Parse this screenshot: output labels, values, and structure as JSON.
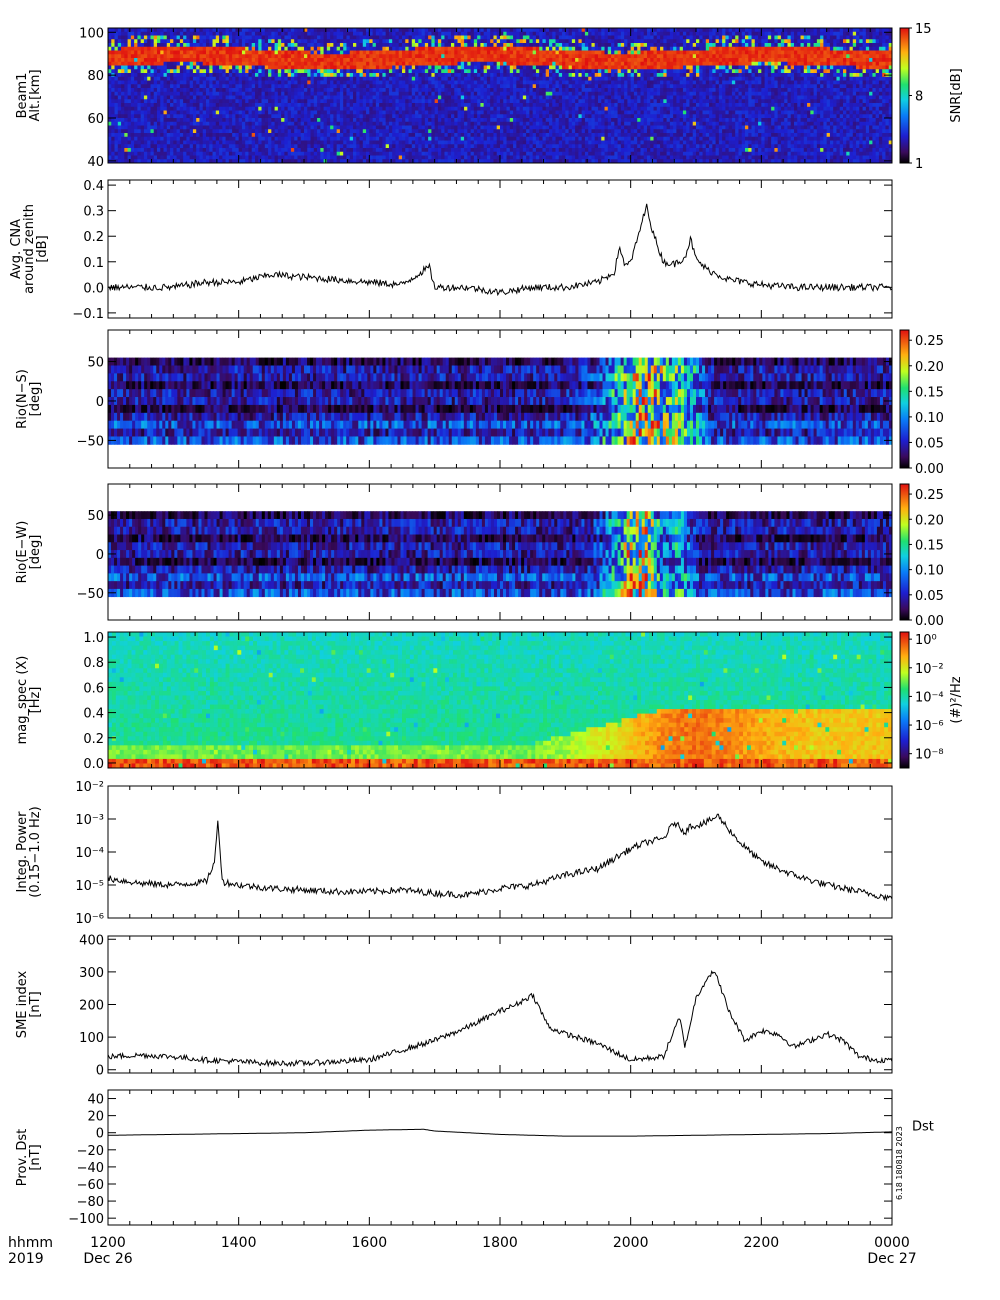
{
  "bottom_axis": {
    "row1_label": "hhmm",
    "row2_label": "2019",
    "ticks": [
      {
        "value": 1200,
        "label": "1200",
        "sub": "Dec 26"
      },
      {
        "value": 1400,
        "label": "1400",
        "sub": ""
      },
      {
        "value": 1600,
        "label": "1600",
        "sub": ""
      },
      {
        "value": 1800,
        "label": "1800",
        "sub": ""
      },
      {
        "value": 2000,
        "label": "2000",
        "sub": ""
      },
      {
        "value": 2200,
        "label": "2200",
        "sub": ""
      },
      {
        "value": 2400,
        "label": "0000",
        "sub": "Dec 27"
      }
    ]
  },
  "credit": "6.18 180818 2023",
  "chart_data": [
    {
      "type": "heatmap",
      "ylabel": [
        "Beam1",
        "Alt.[km]"
      ],
      "yticks": [
        {
          "v": 40,
          "l": "40"
        },
        {
          "v": 60,
          "l": "60"
        },
        {
          "v": 80,
          "l": "80"
        },
        {
          "v": 100,
          "l": "100"
        }
      ],
      "ylim": [
        39,
        102
      ],
      "colorbar": {
        "title": "SNR[dB]",
        "range": [
          1,
          15
        ],
        "ticks": [
          {
            "v": 1,
            "l": "1"
          },
          {
            "v": 8,
            "l": "8"
          },
          {
            "v": 15,
            "l": "15"
          }
        ]
      },
      "description_bands": {
        "echo_layer_altitude_km": [
          84,
          92
        ],
        "peak_snr_db": 15,
        "background_snr_db": 2
      }
    },
    {
      "type": "line",
      "ylabel": [
        "Avg. CNA",
        "around zenith",
        "[dB]"
      ],
      "ylim": [
        -0.12,
        0.42
      ],
      "yticks": [
        {
          "v": -0.1,
          "l": "−0.1"
        },
        {
          "v": 0,
          "l": "0.0"
        },
        {
          "v": 0.1,
          "l": "0.1"
        },
        {
          "v": 0.2,
          "l": "0.2"
        },
        {
          "v": 0.3,
          "l": "0.3"
        },
        {
          "v": 0.4,
          "l": "0.4"
        }
      ],
      "x": [
        1200,
        1300,
        1330,
        1400,
        1430,
        1500,
        1530,
        1600,
        1630,
        1655,
        1700,
        1730,
        1800,
        1830,
        1900,
        1930,
        1945,
        1950,
        1955,
        2000,
        2005,
        2010,
        2015,
        2020,
        2030,
        2040,
        2050,
        2055,
        2100,
        2110,
        2120,
        2130,
        2200,
        2230,
        2300,
        2330,
        2400
      ],
      "values": [
        0.0,
        0.0,
        0.02,
        0.02,
        0.05,
        0.04,
        0.03,
        0.02,
        0.01,
        0.08,
        0.0,
        0.0,
        -0.02,
        0.0,
        0.0,
        0.02,
        0.06,
        0.16,
        0.08,
        0.1,
        0.17,
        0.25,
        0.32,
        0.22,
        0.1,
        0.09,
        0.12,
        0.19,
        0.11,
        0.07,
        0.05,
        0.03,
        0.01,
        0.0,
        0.0,
        0.0,
        0.0
      ]
    },
    {
      "type": "heatmap",
      "ylabel": [
        "Rio(N−S)",
        "[deg]"
      ],
      "ylim": [
        -85,
        90
      ],
      "yticks": [
        {
          "v": -50,
          "l": "−50"
        },
        {
          "v": 0,
          "l": "0"
        },
        {
          "v": 50,
          "l": "50"
        }
      ],
      "colorbar": {
        "title": "",
        "range": [
          0,
          0.27
        ],
        "ticks": [
          {
            "v": 0,
            "l": "0.00"
          },
          {
            "v": 0.05,
            "l": "0.05"
          },
          {
            "v": 0.1,
            "l": "0.10"
          },
          {
            "v": 0.15,
            "l": "0.15"
          },
          {
            "v": 0.2,
            "l": "0.20"
          },
          {
            "v": 0.25,
            "l": "0.25"
          }
        ]
      },
      "extent_deg": [
        -55,
        55
      ]
    },
    {
      "type": "heatmap",
      "ylabel": [
        "Rio(E−W)",
        "[deg]"
      ],
      "ylim": [
        -85,
        90
      ],
      "yticks": [
        {
          "v": -50,
          "l": "−50"
        },
        {
          "v": 0,
          "l": "0"
        },
        {
          "v": 50,
          "l": "50"
        }
      ],
      "colorbar": {
        "title": "",
        "range": [
          0,
          0.27
        ],
        "ticks": [
          {
            "v": 0,
            "l": "0.00"
          },
          {
            "v": 0.05,
            "l": "0.05"
          },
          {
            "v": 0.1,
            "l": "0.10"
          },
          {
            "v": 0.15,
            "l": "0.15"
          },
          {
            "v": 0.2,
            "l": "0.20"
          },
          {
            "v": 0.25,
            "l": "0.25"
          }
        ]
      },
      "extent_deg": [
        -55,
        55
      ]
    },
    {
      "type": "heatmap",
      "ylabel": [
        "mag_spec (X)",
        "[Hz]"
      ],
      "ylim": [
        -0.04,
        1.04
      ],
      "yticks": [
        {
          "v": 0,
          "l": "0.0"
        },
        {
          "v": 0.2,
          "l": "0.2"
        },
        {
          "v": 0.4,
          "l": "0.4"
        },
        {
          "v": 0.6,
          "l": "0.6"
        },
        {
          "v": 0.8,
          "l": "0.8"
        },
        {
          "v": 1.0,
          "l": "1.0"
        }
      ],
      "colorbar": {
        "title": "(#)²/Hz",
        "scale": "log",
        "range": [
          -9,
          0.5
        ],
        "ticks": [
          {
            "v": 0,
            "l": "10⁰"
          },
          {
            "v": -2,
            "l": "10⁻²"
          },
          {
            "v": -4,
            "l": "10⁻⁴"
          },
          {
            "v": -6,
            "l": "10⁻⁶"
          },
          {
            "v": -8,
            "l": "10⁻⁸"
          }
        ]
      }
    },
    {
      "type": "line",
      "ylabel": [
        "Integ. Power",
        "(0.15−1.0 Hz)"
      ],
      "scale": "log",
      "ylim": [
        -6,
        -2
      ],
      "yticks": [
        {
          "v": -6,
          "l": "10⁻⁶"
        },
        {
          "v": -5,
          "l": "10⁻⁵"
        },
        {
          "v": -4,
          "l": "10⁻⁴"
        },
        {
          "v": -3,
          "l": "10⁻³"
        },
        {
          "v": -2,
          "l": "10⁻²"
        }
      ],
      "x": [
        1200,
        1230,
        1300,
        1330,
        1338,
        1341,
        1345,
        1400,
        1430,
        1500,
        1530,
        1600,
        1630,
        1700,
        1730,
        1800,
        1830,
        1900,
        1930,
        1945,
        2000,
        2015,
        2030,
        2040,
        2050,
        2055,
        2100,
        2110,
        2120,
        2130,
        2140,
        2150,
        2200,
        2230,
        2300,
        2330,
        2400
      ],
      "values": [
        -4.8,
        -4.95,
        -5.0,
        -4.9,
        -4.3,
        -3.0,
        -4.9,
        -5.0,
        -5.1,
        -5.15,
        -5.2,
        -5.2,
        -5.15,
        -5.25,
        -5.3,
        -5.1,
        -5.0,
        -4.7,
        -4.5,
        -4.2,
        -3.9,
        -3.7,
        -3.6,
        -3.1,
        -3.4,
        -3.2,
        -3.2,
        -3.1,
        -2.9,
        -3.3,
        -3.7,
        -4.0,
        -4.3,
        -4.7,
        -5.0,
        -5.2,
        -5.4
      ]
    },
    {
      "type": "line",
      "ylabel": [
        "SME index",
        "[nT]"
      ],
      "ylim": [
        -10,
        410
      ],
      "yticks": [
        {
          "v": 0,
          "l": "0"
        },
        {
          "v": 100,
          "l": "100"
        },
        {
          "v": 200,
          "l": "200"
        },
        {
          "v": 300,
          "l": "300"
        },
        {
          "v": 400,
          "l": "400"
        }
      ],
      "x": [
        1200,
        1230,
        1300,
        1330,
        1400,
        1430,
        1500,
        1530,
        1600,
        1630,
        1700,
        1730,
        1800,
        1815,
        1830,
        1845,
        1900,
        1930,
        2000,
        2030,
        2045,
        2050,
        2100,
        2110,
        2115,
        2120,
        2130,
        2145,
        2200,
        2215,
        2230,
        2300,
        2315,
        2330,
        2345,
        2400
      ],
      "values": [
        40,
        45,
        40,
        30,
        25,
        20,
        20,
        25,
        30,
        60,
        90,
        130,
        180,
        200,
        230,
        130,
        110,
        80,
        30,
        40,
        160,
        70,
        220,
        280,
        300,
        280,
        180,
        90,
        120,
        110,
        70,
        110,
        90,
        40,
        30,
        30
      ]
    },
    {
      "type": "line",
      "ylabel": [
        "Prov. Dst",
        "[nT]"
      ],
      "ylim": [
        -108,
        50
      ],
      "yticks": [
        {
          "v": -100,
          "l": "−100"
        },
        {
          "v": -80,
          "l": "−80"
        },
        {
          "v": -60,
          "l": "−60"
        },
        {
          "v": -40,
          "l": "−40"
        },
        {
          "v": -20,
          "l": "−20"
        },
        {
          "v": 0,
          "l": "0"
        },
        {
          "v": 20,
          "l": "20"
        },
        {
          "v": 40,
          "l": "40"
        }
      ],
      "right_label": "Dst",
      "x": [
        1200,
        1300,
        1400,
        1500,
        1600,
        1650,
        1700,
        1800,
        1900,
        2000,
        2100,
        2200,
        2300,
        2400
      ],
      "values": [
        -3,
        -2,
        -1,
        0,
        3,
        4,
        2,
        -2,
        -4,
        -4,
        -3,
        -2,
        -1,
        1
      ]
    }
  ]
}
